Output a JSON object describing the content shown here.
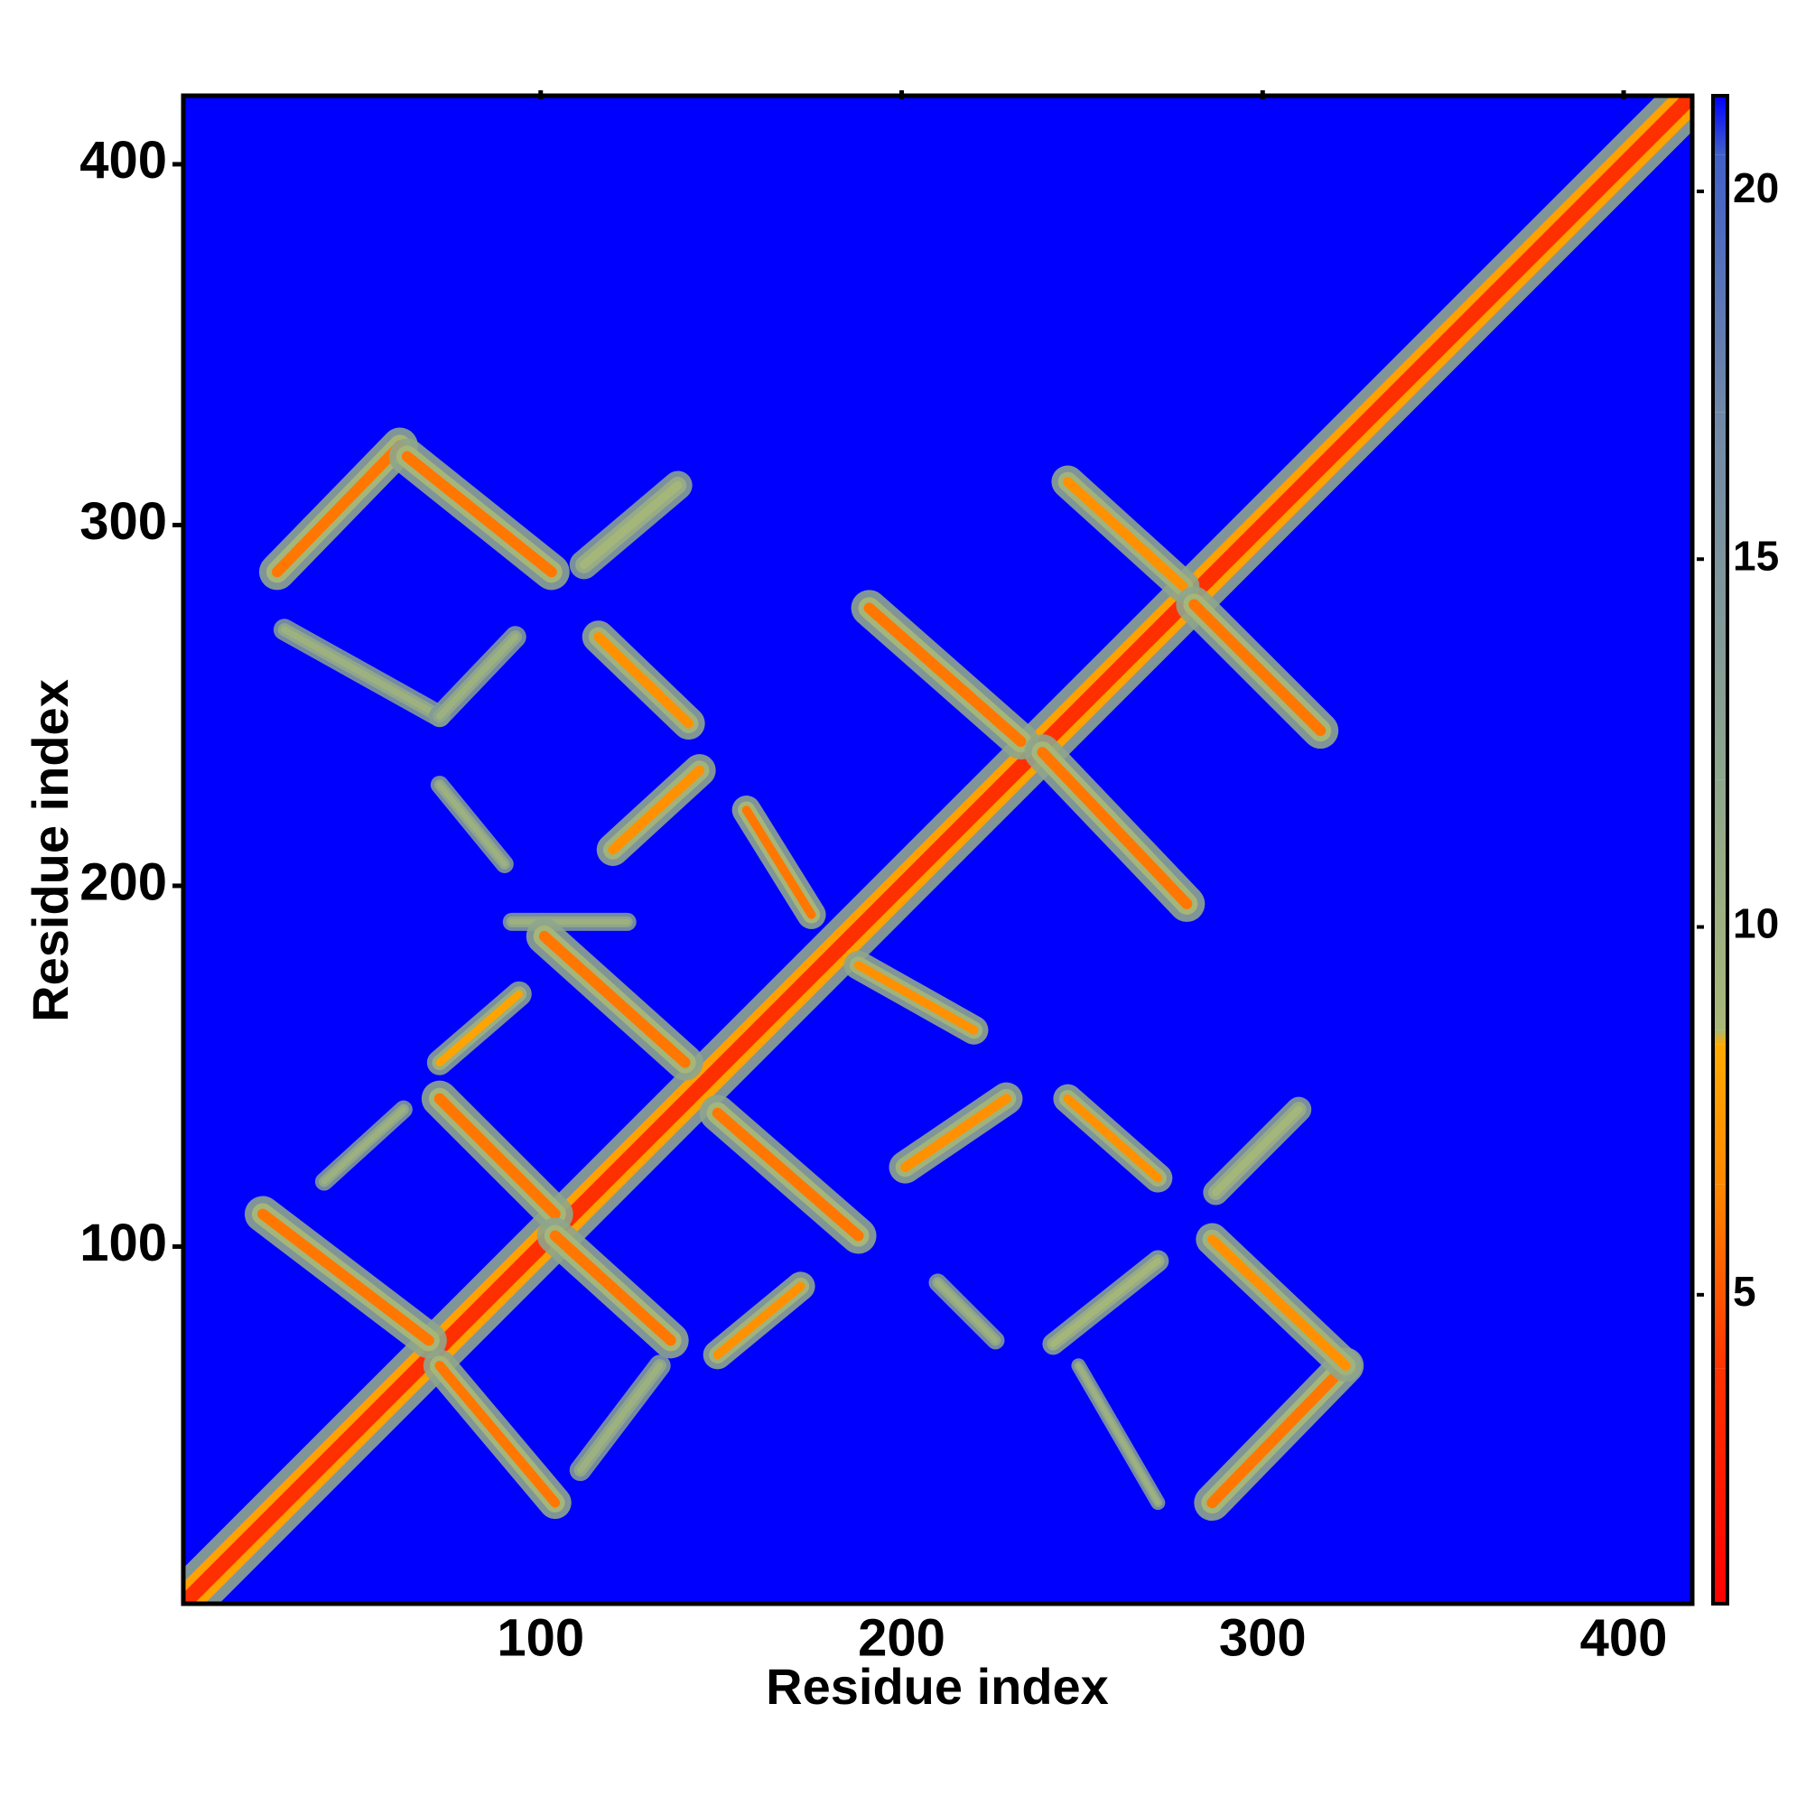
{
  "chart_data": {
    "type": "heatmap",
    "x_label": "Residue index",
    "y_label": "Residue index",
    "xlim": [
      1,
      419
    ],
    "ylim": [
      1,
      419
    ],
    "xticks": [
      100,
      200,
      300,
      400
    ],
    "yticks": [
      100,
      200,
      300,
      400
    ],
    "clim": [
      0.8,
      21.3
    ],
    "cticks": [
      5,
      10,
      15,
      20
    ],
    "colorscale": [
      {
        "value": 0.8,
        "color": "#ff0000"
      },
      {
        "value": 4,
        "color": "#ff3300"
      },
      {
        "value": 6.5,
        "color": "#ff8800"
      },
      {
        "value": 8.4,
        "color": "#ffaa00"
      },
      {
        "value": 8.6,
        "color": "#a8b878"
      },
      {
        "value": 12,
        "color": "#8ea68c"
      },
      {
        "value": 17,
        "color": "#7088a8"
      },
      {
        "value": 20.5,
        "color": "#4060c8"
      },
      {
        "value": 21.3,
        "color": "#0000ff"
      }
    ],
    "contact_bands": [
      {
        "from": [
          1,
          1
        ],
        "to": [
          419,
          419
        ],
        "distance": [
          3.8,
          12
        ],
        "width": 14
      },
      {
        "from": [
          27,
          287
        ],
        "to": [
          61,
          322
        ],
        "distance": [
          6,
          12
        ],
        "width": 10
      },
      {
        "from": [
          63,
          319
        ],
        "to": [
          103,
          287
        ],
        "distance": [
          6,
          12
        ],
        "width": 10
      },
      {
        "from": [
          112,
          289
        ],
        "to": [
          138,
          311
        ],
        "distance": [
          9,
          13
        ],
        "width": 8
      },
      {
        "from": [
          29,
          271
        ],
        "to": [
          72,
          247
        ],
        "distance": [
          10,
          14
        ],
        "width": 6
      },
      {
        "from": [
          72,
          247
        ],
        "to": [
          93,
          269
        ],
        "distance": [
          10,
          14
        ],
        "width": 6
      },
      {
        "from": [
          116,
          269
        ],
        "to": [
          141,
          245
        ],
        "distance": [
          7,
          12
        ],
        "width": 9
      },
      {
        "from": [
          120,
          210
        ],
        "to": [
          144,
          232
        ],
        "distance": [
          7,
          12
        ],
        "width": 9
      },
      {
        "from": [
          72,
          228
        ],
        "to": [
          90,
          206
        ],
        "distance": [
          10,
          14
        ],
        "width": 5
      },
      {
        "from": [
          157,
          221
        ],
        "to": [
          175,
          192
        ],
        "distance": [
          6,
          12
        ],
        "width": 8
      },
      {
        "from": [
          191,
          277
        ],
        "to": [
          233,
          240
        ],
        "distance": [
          6,
          12
        ],
        "width": 10
      },
      {
        "from": [
          246,
          312
        ],
        "to": [
          278,
          283
        ],
        "distance": [
          7,
          12
        ],
        "width": 9
      },
      {
        "from": [
          281,
          278
        ],
        "to": [
          316,
          243
        ],
        "distance": [
          6,
          12
        ],
        "width": 10
      },
      {
        "from": [
          239,
          237
        ],
        "to": [
          279,
          195
        ],
        "distance": [
          6,
          12
        ],
        "width": 10
      },
      {
        "from": [
          92,
          190
        ],
        "to": [
          124,
          190
        ],
        "distance": [
          10,
          14
        ],
        "width": 5
      },
      {
        "from": [
          101,
          186
        ],
        "to": [
          140,
          151
        ],
        "distance": [
          6,
          12
        ],
        "width": 10
      },
      {
        "from": [
          72,
          151
        ],
        "to": [
          94,
          170
        ],
        "distance": [
          8,
          13
        ],
        "width": 7
      },
      {
        "from": [
          188,
          178
        ],
        "to": [
          220,
          160
        ],
        "distance": [
          7,
          12
        ],
        "width": 8
      },
      {
        "from": [
          72,
          141
        ],
        "to": [
          104,
          109
        ],
        "distance": [
          6,
          12
        ],
        "width": 10
      },
      {
        "from": [
          23,
          109
        ],
        "to": [
          69,
          74
        ],
        "distance": [
          6,
          12
        ],
        "width": 10
      },
      {
        "from": [
          104,
          103
        ],
        "to": [
          136,
          74
        ],
        "distance": [
          6,
          12
        ],
        "width": 10
      },
      {
        "from": [
          72,
          67
        ],
        "to": [
          104,
          29
        ],
        "distance": [
          6,
          12
        ],
        "width": 9
      },
      {
        "from": [
          149,
          137
        ],
        "to": [
          188,
          103
        ],
        "distance": [
          6,
          12
        ],
        "width": 10
      },
      {
        "from": [
          149,
          70
        ],
        "to": [
          172,
          89
        ],
        "distance": [
          7,
          12
        ],
        "width": 8
      },
      {
        "from": [
          201,
          122
        ],
        "to": [
          229,
          141
        ],
        "distance": [
          7,
          12
        ],
        "width": 9
      },
      {
        "from": [
          246,
          141
        ],
        "to": [
          271,
          119
        ],
        "distance": [
          7,
          12
        ],
        "width": 8
      },
      {
        "from": [
          286,
          29
        ],
        "to": [
          323,
          67
        ],
        "distance": [
          6,
          12
        ],
        "width": 10
      },
      {
        "from": [
          286,
          102
        ],
        "to": [
          323,
          67
        ],
        "distance": [
          7,
          12
        ],
        "width": 9
      },
      {
        "from": [
          287,
          115
        ],
        "to": [
          310,
          138
        ],
        "distance": [
          9,
          13
        ],
        "width": 7
      },
      {
        "from": [
          242,
          73
        ],
        "to": [
          271,
          96
        ],
        "distance": [
          9,
          13
        ],
        "width": 6
      },
      {
        "from": [
          249,
          67
        ],
        "to": [
          271,
          29
        ],
        "distance": [
          10,
          14
        ],
        "width": 4
      },
      {
        "from": [
          111,
          38
        ],
        "to": [
          133,
          67
        ],
        "distance": [
          10,
          14
        ],
        "width": 6
      },
      {
        "from": [
          40,
          118
        ],
        "to": [
          62,
          138
        ],
        "distance": [
          10,
          14
        ],
        "width": 5
      },
      {
        "from": [
          210,
          90
        ],
        "to": [
          226,
          74
        ],
        "distance": [
          10,
          14
        ],
        "width": 5
      }
    ]
  }
}
